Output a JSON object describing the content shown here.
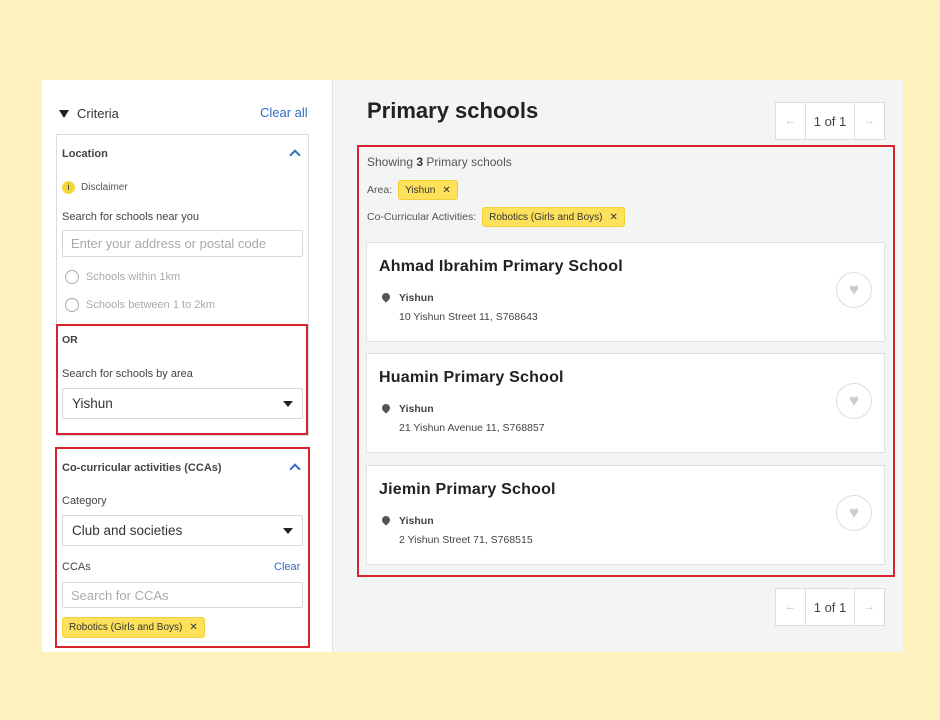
{
  "sidebar": {
    "title": "Criteria",
    "clear_all": "Clear all",
    "location": {
      "title": "Location",
      "disclaimer": "Disclaimer",
      "near_label": "Search for schools near you",
      "address_placeholder": "Enter your address or postal code",
      "radio_1km": "Schools within 1km",
      "radio_2km": "Schools between 1 to 2km",
      "or": "OR",
      "area_label": "Search for schools by area",
      "area_value": "Yishun"
    },
    "cca": {
      "title": "Co-curricular activities (CCAs)",
      "category_label": "Category",
      "category_value": "Club and societies",
      "ccas_label": "CCAs",
      "clear": "Clear",
      "search_placeholder": "Search for CCAs",
      "selected_chip": "Robotics (Girls and Boys)"
    }
  },
  "main": {
    "title": "Primary schools",
    "pager": {
      "text": "1 of 1",
      "prev": "←",
      "next": "→"
    },
    "showing_prefix": "Showing",
    "showing_count": "3",
    "showing_suffix": "Primary schools",
    "area_label": "Area:",
    "area_chip": "Yishun",
    "cca_label": "Co-Curricular Activities:",
    "cca_chip": "Robotics (Girls and Boys)",
    "schools": [
      {
        "name": "Ahmad Ibrahim Primary School",
        "area": "Yishun",
        "address": "10 Yishun Street 11, S768643"
      },
      {
        "name": "Huamin Primary School",
        "area": "Yishun",
        "address": "21 Yishun Avenue 11, S768857"
      },
      {
        "name": "Jiemin Primary School",
        "area": "Yishun",
        "address": "2 Yishun Street 71, S768515"
      }
    ]
  },
  "colors": {
    "background": "#fdf2bd",
    "highlight": "#d6232e",
    "chip": "#fde15a",
    "link": "#2e6fc4"
  }
}
